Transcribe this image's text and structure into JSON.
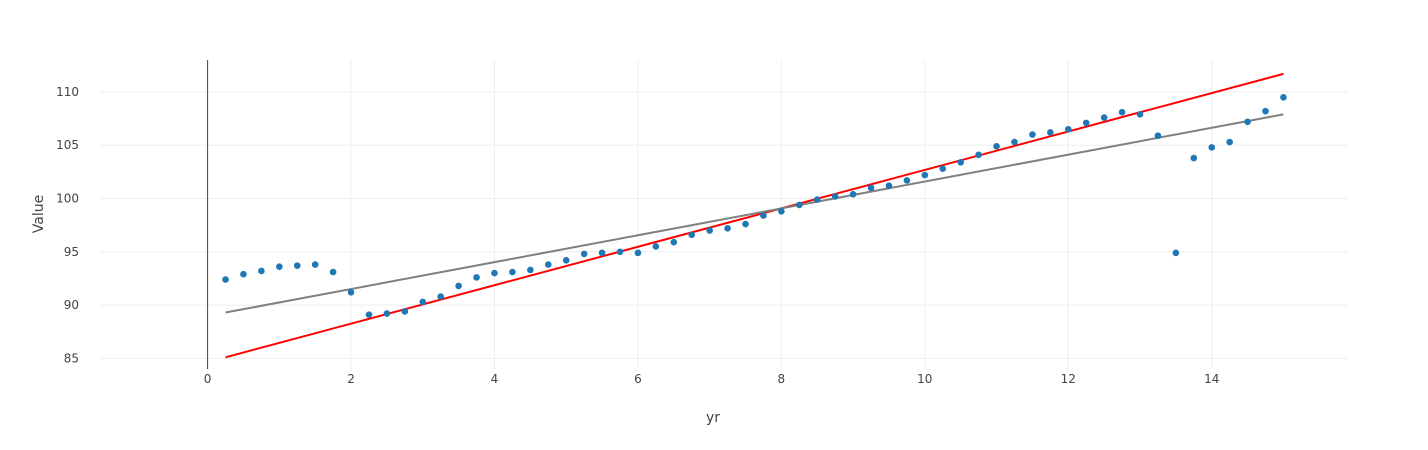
{
  "chart_data": {
    "type": "scatter",
    "title": "",
    "xlabel": "yr",
    "ylabel": "Value",
    "xlim": [
      -1.5,
      15.9
    ],
    "ylim": [
      84,
      113
    ],
    "x_ticks": [
      0,
      2,
      4,
      6,
      8,
      10,
      12,
      14
    ],
    "y_ticks": [
      85,
      90,
      95,
      100,
      105,
      110
    ],
    "grid": true,
    "legend": "none",
    "colors": {
      "points": "#1f77b4",
      "red_fit": "#ff0000",
      "gray_fit": "#808080"
    },
    "series": [
      {
        "mode": "markers",
        "color": "#1f77b4",
        "x": [
          0.25,
          0.5,
          0.75,
          1.0,
          1.25,
          1.5,
          1.75,
          2.0,
          2.25,
          2.5,
          2.75,
          3.0,
          3.25,
          3.5,
          3.75,
          4.0,
          4.25,
          4.5,
          4.75,
          5.0,
          5.25,
          5.5,
          5.75,
          6.0,
          6.25,
          6.5,
          6.75,
          7.0,
          7.25,
          7.5,
          7.75,
          8.0,
          8.25,
          8.5,
          8.75,
          9.0,
          9.25,
          9.5,
          9.75,
          10.0,
          10.25,
          10.5,
          10.75,
          11.0,
          11.25,
          11.5,
          11.75,
          12.0,
          12.25,
          12.5,
          12.75,
          13.0,
          13.25,
          13.5,
          13.75,
          14.0,
          14.25,
          14.5,
          14.75,
          15.0
        ],
        "y": [
          92.4,
          92.9,
          93.2,
          93.6,
          93.7,
          93.8,
          93.1,
          91.2,
          89.1,
          89.2,
          89.4,
          90.3,
          90.8,
          91.8,
          92.6,
          93.0,
          93.1,
          93.3,
          93.8,
          94.2,
          94.8,
          94.9,
          95.0,
          94.9,
          95.5,
          95.9,
          96.6,
          97.0,
          97.2,
          97.6,
          98.4,
          98.8,
          99.4,
          99.9,
          100.2,
          100.4,
          101.0,
          101.2,
          101.7,
          102.2,
          102.8,
          103.4,
          104.1,
          104.9,
          105.3,
          106.0,
          106.2,
          106.5,
          107.1,
          107.6,
          108.1,
          107.9,
          105.9,
          94.9,
          103.8,
          104.8,
          105.3,
          107.2,
          108.2,
          109.5
        ]
      },
      {
        "mode": "line",
        "color": "#ff0000",
        "x": [
          0.25,
          15.0
        ],
        "y": [
          85.1,
          111.7
        ]
      },
      {
        "mode": "line",
        "color": "#808080",
        "x": [
          0.25,
          15.0
        ],
        "y": [
          89.3,
          107.9
        ]
      }
    ]
  }
}
